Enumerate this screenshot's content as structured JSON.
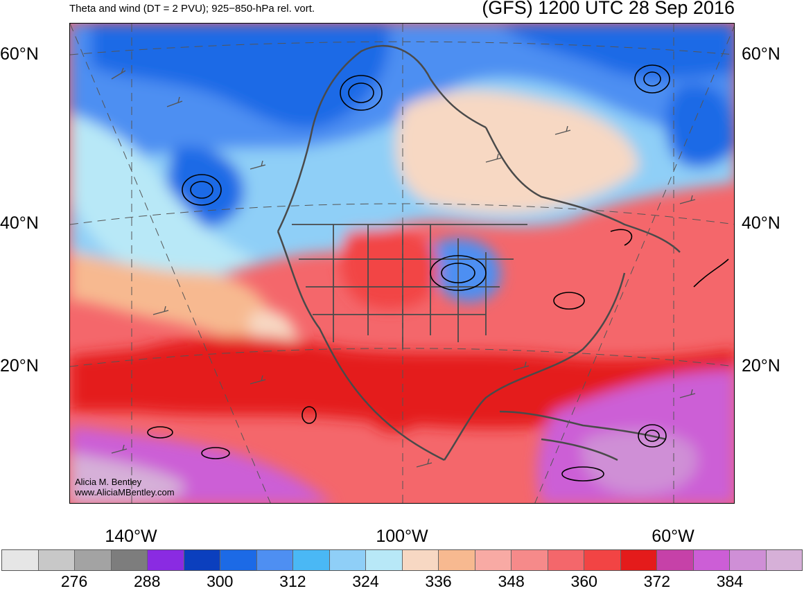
{
  "header": {
    "left_title": "Theta and wind (DT = 2 PVU); 925−850-hPa rel. vort.",
    "right_title": "(GFS) 1200 UTC 28 Sep 2016"
  },
  "axes": {
    "lat_labels": [
      "60°N",
      "40°N",
      "20°N"
    ],
    "lon_labels": [
      "140°W",
      "100°W",
      "60°W"
    ]
  },
  "credit": {
    "line1": "Alicia M. Bentley",
    "line2": "www.AliciaMBentley.com"
  },
  "colorbar": {
    "colors": [
      "#e6e6e6",
      "#c8c8c8",
      "#a3a3a3",
      "#7d7d7d",
      "#8a2be2",
      "#0b3fbe",
      "#1c6ae6",
      "#4e8ff2",
      "#4ab8f5",
      "#8fcff7",
      "#b8e8f7",
      "#f7d8c3",
      "#f7b990",
      "#f8aaa4",
      "#f68a8a",
      "#f4676b",
      "#f24444",
      "#e41b1b",
      "#c641a8",
      "#cc5ed6",
      "#cf8fd6",
      "#d6b0d8"
    ],
    "tick_labels": [
      "276",
      "288",
      "300",
      "312",
      "324",
      "336",
      "348",
      "360",
      "372",
      "384"
    ]
  },
  "map": {
    "description_colors": {
      "warm": "#f24444",
      "deep_warm": "#e41b1b",
      "cool": "#8fcff7",
      "cold": "#1c6ae6",
      "tropical": "#cc5ed6"
    }
  }
}
